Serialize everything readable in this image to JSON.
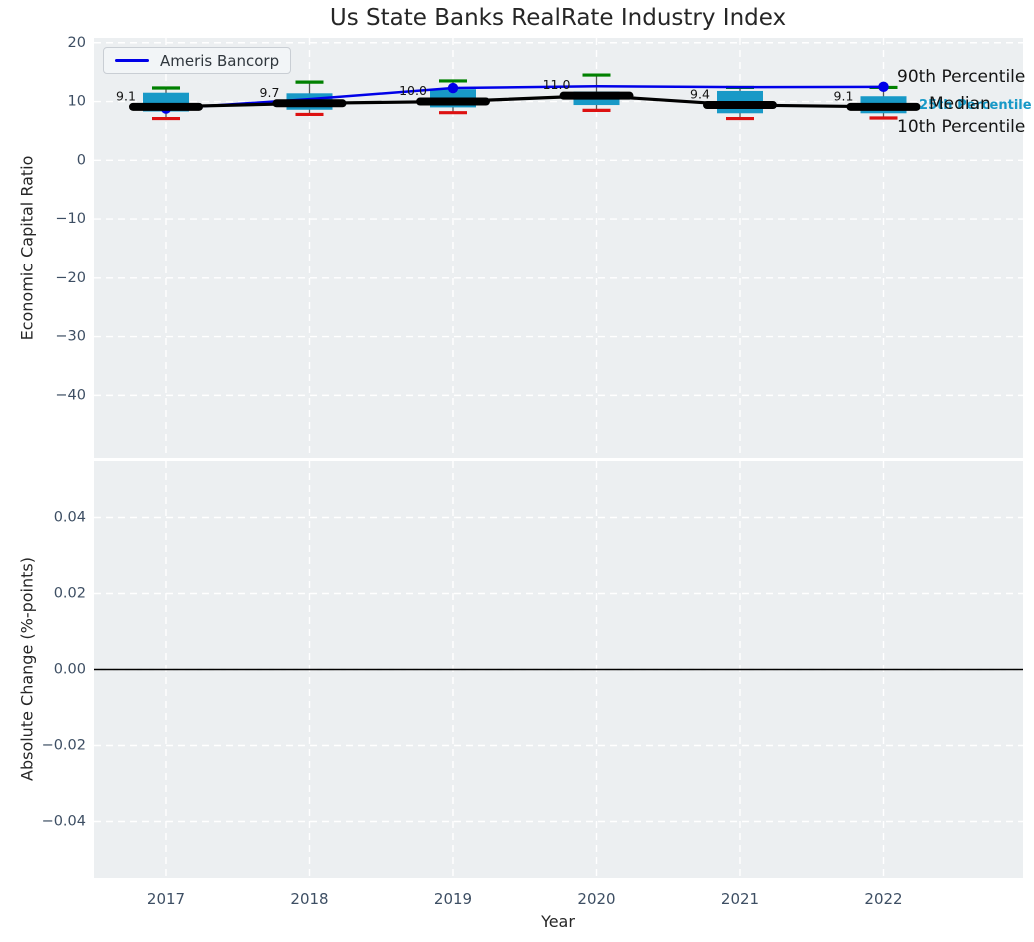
{
  "title": "Us State Banks RealRate Industry Index",
  "legend": {
    "label": "Ameris Bancorp"
  },
  "right_annotations": {
    "p90": "90th Percentile",
    "median": "Median",
    "p25": "25th Percentile",
    "p10": "10th Percentile"
  },
  "colors": {
    "accent_line": "#0000e8",
    "box_fill": "#1899c7",
    "p90_cap": "#008000",
    "p10_cap": "#dd1111",
    "median_line": "#000000",
    "plot_bg": "#eceff1",
    "grid": "#ffffff",
    "tick_text": "#3d4e63",
    "label_text": "#262626",
    "whisker": "#555555"
  },
  "chart_data": [
    {
      "type": "boxplot-line",
      "title": "Us State Banks RealRate Industry Index",
      "xlabel": "Year",
      "ylabel": "Economic Capital Ratio",
      "categories": [
        "2017",
        "2018",
        "2019",
        "2020",
        "2021",
        "2022"
      ],
      "ytick_labels": [
        "20",
        "10",
        "0",
        "−10",
        "−20",
        "−30",
        "−40"
      ],
      "ytick_values": [
        20,
        10,
        0,
        -10,
        -20,
        -30,
        -40
      ],
      "ylim": [
        -50.6,
        20.8
      ],
      "grid": true,
      "legend_position": "upper left",
      "boxes": [
        {
          "year": "2017",
          "p10": 7.1,
          "p25": 8.3,
          "median": 9.1,
          "p75": 11.5,
          "p90": 12.3
        },
        {
          "year": "2018",
          "p10": 7.8,
          "p25": 8.6,
          "median": 9.7,
          "p75": 11.4,
          "p90": 13.3
        },
        {
          "year": "2019",
          "p10": 8.1,
          "p25": 9.0,
          "median": 10.0,
          "p75": 12.1,
          "p90": 13.5
        },
        {
          "year": "2020",
          "p10": 8.5,
          "p25": 9.4,
          "median": 11.0,
          "p75": 11.7,
          "p90": 14.5
        },
        {
          "year": "2021",
          "p10": 7.1,
          "p25": 8.0,
          "median": 9.4,
          "p75": 11.8,
          "p90": 12.4
        },
        {
          "year": "2022",
          "p10": 7.2,
          "p25": 8.0,
          "median": 9.1,
          "p75": 10.9,
          "p90": 12.4
        }
      ],
      "median_labels": [
        "9.1",
        "9.7",
        "10.0",
        "11.0",
        "9.4",
        "9.1"
      ],
      "series": [
        {
          "name": "Ameris Bancorp",
          "values": [
            8.8,
            10.4,
            12.3,
            12.6,
            12.45,
            12.5
          ],
          "marker_indices": [
            0,
            2,
            5
          ]
        }
      ]
    },
    {
      "type": "empty",
      "xlabel": "Year",
      "ylabel": "Absolute Change (%-points)",
      "categories": [
        "2017",
        "2018",
        "2019",
        "2020",
        "2021",
        "2022"
      ],
      "ytick_labels": [
        "0.04",
        "0.02",
        "0.00",
        "−0.02",
        "−0.04"
      ],
      "ytick_values": [
        0.04,
        0.02,
        0,
        -0.02,
        -0.04
      ],
      "ylim": [
        -0.0555,
        0.0545
      ],
      "zero_line": 0,
      "grid": true
    }
  ]
}
